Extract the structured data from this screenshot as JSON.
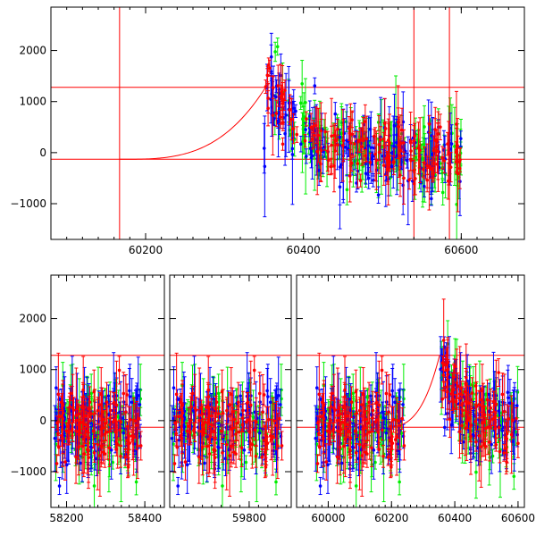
{
  "colors": {
    "series_a": "#00ee00",
    "series_b": "#0000ff",
    "series_c": "#ff0000",
    "model": "#ff0000"
  },
  "chart_data": [
    {
      "id": "top",
      "type": "scatter",
      "title": "",
      "xlabel": "",
      "ylabel": "",
      "grid": false,
      "xlim": [
        60080,
        60680
      ],
      "ylim": [
        -1700,
        2850
      ],
      "xticks": [
        60200,
        60400,
        60600
      ],
      "yticks": [
        -1000,
        0,
        1000,
        2000
      ],
      "hlines": [
        1280,
        -130
      ],
      "vlines": [
        60167
      ],
      "model_curve": {
        "start_x": 60167,
        "base": -130,
        "peak_x": 60352,
        "peak": 1280
      },
      "data_x_range": [
        60350,
        60600
      ],
      "series": [
        {
          "color": "series_a",
          "seed": 11
        },
        {
          "color": "series_b",
          "seed": 23
        },
        {
          "color": "series_c",
          "seed": 37
        }
      ]
    },
    {
      "id": "bottom",
      "type": "scatter",
      "title": "",
      "xlabel": "",
      "ylabel": "",
      "grid": false,
      "broken_axis": true,
      "ylim": [
        -1700,
        2850
      ],
      "yticks": [
        -1000,
        0,
        1000,
        2000
      ],
      "hlines": [
        1280,
        -130
      ],
      "segments": [
        {
          "xlim": [
            58160,
            58450
          ],
          "xticks": [
            58200,
            58400
          ],
          "data_x_range": [
            58170,
            58390
          ],
          "hline_range": [
            58390,
            58450
          ]
        },
        {
          "xlim": [
            59630,
            59890
          ],
          "xticks": [
            59800
          ],
          "data_x_range": [
            59635,
            59870
          ],
          "hline_range": [
            59870,
            59890
          ]
        },
        {
          "xlim": [
            59900,
            60620
          ],
          "xticks": [
            60000,
            60200,
            60400,
            60600
          ],
          "data_x_range": [
            59960,
            60600
          ],
          "model_curve": {
            "start_x": 60167,
            "base": -130,
            "peak_x": 60352,
            "peak": 1280
          }
        }
      ],
      "series": [
        {
          "color": "series_a",
          "seed": 51
        },
        {
          "color": "series_b",
          "seed": 67
        },
        {
          "color": "series_c",
          "seed": 79
        }
      ]
    }
  ]
}
